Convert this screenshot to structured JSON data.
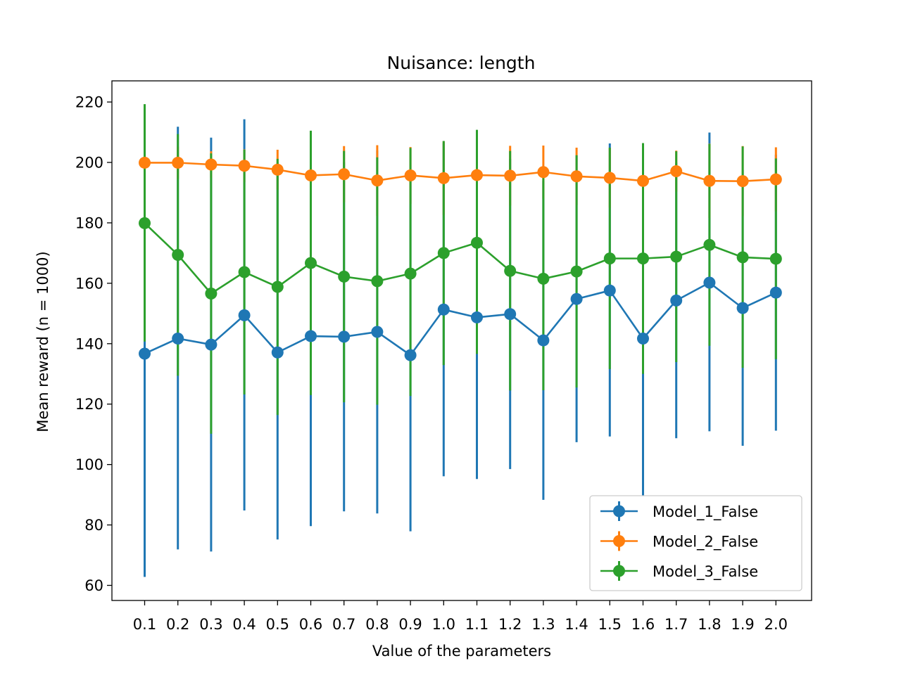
{
  "chart_data": {
    "type": "line",
    "title": "Nuisance: length",
    "xlabel": "Value of the parameters",
    "ylabel": "Mean reward (n = 1000)",
    "ylim": [
      55,
      227
    ],
    "yticks": [
      60,
      80,
      100,
      120,
      140,
      160,
      180,
      200,
      220
    ],
    "categories": [
      "0.1",
      "0.2",
      "0.3",
      "0.4",
      "0.5",
      "0.6",
      "0.7",
      "0.8",
      "0.9",
      "1.0",
      "1.1",
      "1.2",
      "1.3",
      "1.4",
      "1.5",
      "1.6",
      "1.7",
      "1.8",
      "1.9",
      "2.0"
    ],
    "grid": false,
    "legend_position": "lower-right",
    "error_bars": true,
    "series": [
      {
        "name": "Model_1_False",
        "color": "#1f77b4",
        "values": [
          136.7,
          141.7,
          139.7,
          149.4,
          137.1,
          142.5,
          142.3,
          143.9,
          136.2,
          151.3,
          148.7,
          149.8,
          141.1,
          154.8,
          157.6,
          141.7,
          154.3,
          160.2,
          151.8,
          156.9
        ],
        "err_low": [
          62.8,
          71.9,
          71.2,
          84.8,
          75.2,
          79.6,
          84.5,
          83.8,
          77.9,
          96.1,
          95.2,
          98.5,
          88.3,
          107.4,
          109.3,
          89.5,
          108.7,
          111.0,
          106.2,
          111.2
        ],
        "err_high": [
          141.0,
          211.8,
          208.2,
          214.3,
          200.0,
          205.4,
          200.1,
          204.0,
          194.5,
          206.4,
          202.3,
          201.2,
          193.9,
          202.3,
          206.3,
          194.0,
          199.9,
          209.9,
          197.4,
          202.6
        ]
      },
      {
        "name": "Model_2_False",
        "color": "#ff7f0e",
        "values": [
          199.9,
          199.9,
          199.3,
          198.9,
          197.6,
          195.7,
          196.1,
          194.0,
          195.7,
          194.8,
          195.8,
          195.6,
          196.8,
          195.4,
          194.9,
          193.9,
          197.1,
          193.9,
          193.8,
          194.4
        ],
        "err_low": [
          194.9,
          194.6,
          194.9,
          193.5,
          191.0,
          185.6,
          186.8,
          182.3,
          186.3,
          182.6,
          186.6,
          185.7,
          188.0,
          185.9,
          185.0,
          181.4,
          190.3,
          181.6,
          182.2,
          183.8
        ],
        "err_high": [
          204.9,
          205.2,
          203.7,
          204.3,
          204.2,
          205.8,
          205.4,
          205.7,
          205.1,
          207.0,
          205.0,
          205.5,
          205.6,
          204.9,
          204.8,
          206.4,
          203.9,
          206.2,
          205.4,
          205.0
        ]
      },
      {
        "name": "Model_3_False",
        "color": "#2ca02c",
        "values": [
          179.9,
          169.4,
          156.6,
          163.7,
          158.8,
          166.7,
          162.2,
          160.7,
          163.2,
          170.0,
          173.4,
          164.1,
          161.5,
          163.9,
          168.2,
          168.2,
          168.8,
          172.7,
          168.6,
          168.1
        ],
        "err_low": [
          140.7,
          129.4,
          110.2,
          123.2,
          116.4,
          123.0,
          120.6,
          119.8,
          122.7,
          132.9,
          136.6,
          124.5,
          124.6,
          125.5,
          131.6,
          130.0,
          133.9,
          139.3,
          132.0,
          134.9
        ],
        "err_high": [
          219.3,
          209.4,
          203.0,
          204.2,
          201.2,
          210.5,
          203.8,
          201.7,
          204.8,
          207.1,
          210.8,
          203.8,
          198.5,
          202.4,
          204.9,
          206.4,
          203.7,
          206.1,
          205.3,
          201.3
        ]
      }
    ]
  }
}
